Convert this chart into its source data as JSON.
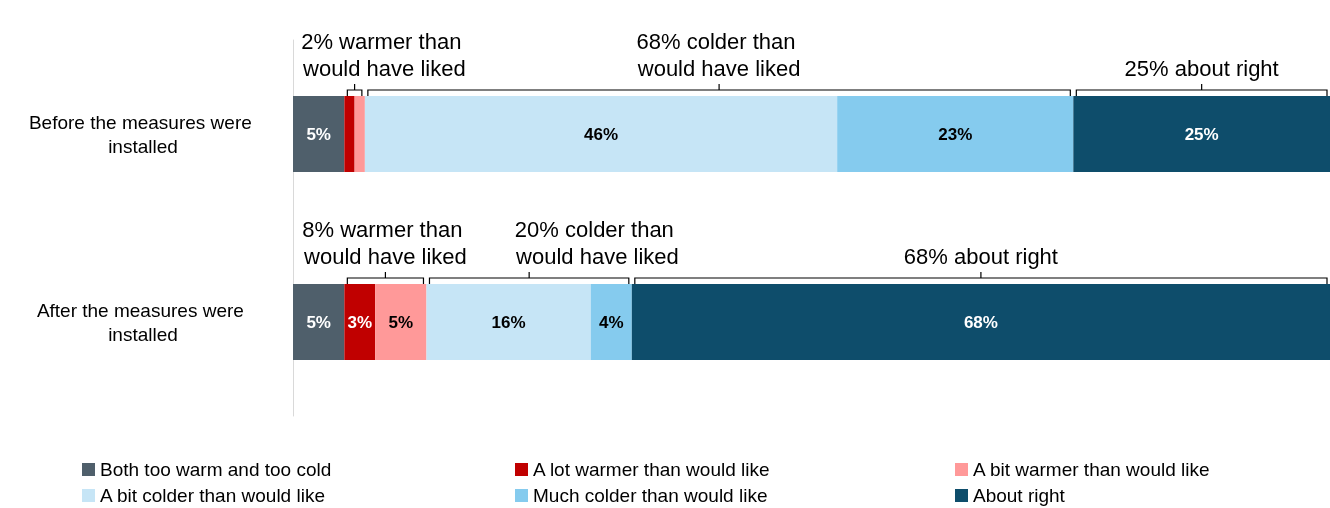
{
  "chart_data": {
    "type": "bar",
    "orientation": "horizontal",
    "stacked": true,
    "legend": "bottom",
    "categories": [
      "Before the measures were installed",
      "After the measures were installed"
    ],
    "xlim": [
      0,
      101
    ],
    "series": [
      {
        "name": "Both too warm and too cold",
        "color": "#4f5f6b",
        "values": [
          5,
          5
        ],
        "value_labels": [
          "5%",
          "5%"
        ]
      },
      {
        "name": "A lot warmer than would like",
        "color": "#c00000",
        "values": [
          1,
          3
        ],
        "value_labels": [
          null,
          "3%"
        ]
      },
      {
        "name": "A bit warmer than would like",
        "color": "#ff9999",
        "values": [
          1,
          5
        ],
        "value_labels": [
          null,
          "5%"
        ]
      },
      {
        "name": "A bit colder than would like",
        "color": "#c6e5f6",
        "values": [
          46,
          16
        ],
        "value_labels": [
          "46%",
          "16%"
        ]
      },
      {
        "name": "Much colder than would like",
        "color": "#85cbee",
        "values": [
          23,
          4
        ],
        "value_labels": [
          "23%",
          "4%"
        ]
      },
      {
        "name": "About right",
        "color": "#0e4d6b",
        "values": [
          25,
          68
        ],
        "value_labels": [
          "25%",
          "68%"
        ]
      }
    ],
    "annotations": [
      "2% warmer than would have liked",
      "68% colder than would have liked",
      "25% about right",
      "8% warmer than would have liked",
      "20% colder than would have liked",
      "68% about right"
    ]
  }
}
